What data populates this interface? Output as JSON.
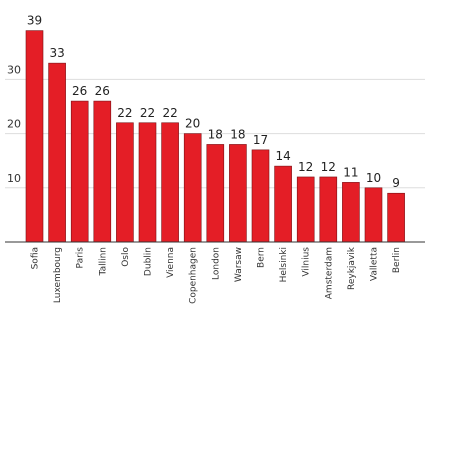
{
  "chart_data": {
    "type": "bar",
    "categories": [
      "Sofia",
      "Luxembourg",
      "Paris",
      "Tallinn",
      "Oslo",
      "Dublin",
      "Vienna",
      "Copenhagen",
      "London",
      "Warsaw",
      "Bern",
      "Helsinki",
      "Vilnius",
      "Amsterdam",
      "Reykjavik",
      "Valletta",
      "Berlin"
    ],
    "values": [
      39,
      33,
      26,
      26,
      22,
      22,
      22,
      20,
      18,
      18,
      17,
      14,
      12,
      12,
      11,
      10,
      9
    ],
    "yticks": [
      10,
      20,
      30
    ],
    "ylim": [
      0,
      40
    ],
    "grid": true,
    "title": "",
    "xlabel": "",
    "ylabel": "",
    "colors": {
      "bar": "#e41e26",
      "bar_edge": "#7a1015",
      "grid": "#dddddd",
      "axis": "#333333"
    }
  }
}
